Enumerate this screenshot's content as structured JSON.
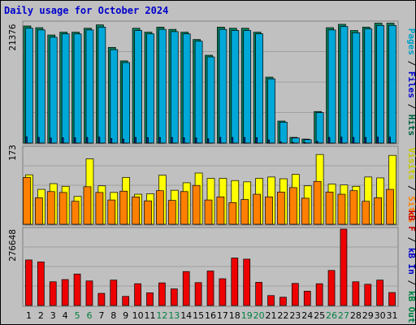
{
  "title": "Daily usage for October 2024",
  "panels": {
    "hits": {
      "max_label": "21376",
      "legend": [
        {
          "text": "Pages",
          "color": "#00a0c8"
        },
        {
          "text": "Files",
          "color": "#0000cc"
        },
        {
          "text": "Hits",
          "color": "#006040"
        }
      ]
    },
    "visits": {
      "max_label": "173",
      "legend": [
        {
          "text": "Visits",
          "color": "#c8c800"
        },
        {
          "text": "Sites",
          "color": "#ff8000"
        }
      ]
    },
    "kbytes": {
      "max_label": "276648",
      "legend": [
        {
          "text": "kB F",
          "color": "#cc0000"
        },
        {
          "text": "kB In",
          "color": "#0000cc"
        },
        {
          "text": "kB Out",
          "color": "#008040"
        }
      ]
    }
  },
  "colors": {
    "hits": "#00805c",
    "files": "#00a8d8",
    "pages": "#0030a0",
    "visits": "#ffff00",
    "sites": "#ff8000",
    "kbf": "#ee0000",
    "weekend_label": "#008040",
    "weekday_label": "#000000"
  },
  "chart_data": {
    "type": "bar",
    "categories": [
      "1",
      "2",
      "3",
      "4",
      "5",
      "6",
      "7",
      "8",
      "9",
      "10",
      "11",
      "12",
      "13",
      "14",
      "15",
      "16",
      "17",
      "18",
      "19",
      "20",
      "21",
      "22",
      "23",
      "24",
      "25",
      "26",
      "27",
      "28",
      "29",
      "30",
      "31"
    ],
    "weekend_days": [
      "5",
      "6",
      "12",
      "13",
      "19",
      "20",
      "26",
      "27"
    ],
    "series": [
      {
        "name": "Hits",
        "panel": "hits",
        "values": [
          20800,
          20500,
          19200,
          19700,
          19700,
          20400,
          21000,
          17000,
          14600,
          20400,
          19700,
          20600,
          20200,
          19700,
          18400,
          15600,
          20600,
          20400,
          20400,
          19700,
          11700,
          3900,
          1000,
          700,
          5600,
          20500,
          21100,
          20000,
          20600,
          21300,
          21300
        ]
      },
      {
        "name": "Files",
        "panel": "hits",
        "values": [
          20400,
          20100,
          18800,
          19400,
          19400,
          20100,
          20600,
          16600,
          14300,
          20000,
          19400,
          20200,
          19800,
          19400,
          18100,
          15300,
          20200,
          20000,
          20000,
          19400,
          11400,
          3700,
          900,
          600,
          5400,
          20100,
          20700,
          19600,
          20300,
          20900,
          20900
        ]
      },
      {
        "name": "Pages",
        "panel": "hits",
        "values": [
          1100,
          1000,
          900,
          950,
          950,
          1000,
          1050,
          800,
          700,
          1000,
          950,
          1000,
          980,
          950,
          900,
          750,
          1000,
          1000,
          1000,
          950,
          550,
          200,
          100,
          80,
          300,
          1000,
          1050,
          1000,
          1000,
          1050,
          1050
        ]
      },
      {
        "name": "Visits",
        "panel": "visits",
        "values": [
          112,
          79,
          92,
          86,
          63,
          148,
          87,
          72,
          106,
          68,
          69,
          111,
          77,
          94,
          116,
          104,
          104,
          99,
          96,
          104,
          107,
          103,
          113,
          87,
          158,
          91,
          89,
          86,
          107,
          105,
          156
        ]
      },
      {
        "name": "Sites",
        "panel": "visits",
        "values": [
          106,
          60,
          74,
          72,
          52,
          85,
          72,
          55,
          75,
          62,
          53,
          76,
          54,
          74,
          88,
          55,
          62,
          49,
          56,
          68,
          62,
          73,
          83,
          59,
          97,
          73,
          68,
          76,
          52,
          60,
          79
        ]
      },
      {
        "name": "kB F",
        "panel": "kbytes",
        "values": [
          165000,
          158000,
          86000,
          94000,
          114000,
          89000,
          44000,
          92000,
          33000,
          79000,
          46000,
          82000,
          60000,
          123000,
          83000,
          125000,
          97000,
          172000,
          168000,
          84000,
          36000,
          30000,
          80000,
          52000,
          79000,
          127000,
          276648,
          86000,
          77000,
          92000,
          47000
        ]
      }
    ],
    "ylim": {
      "hits": [
        0,
        21376
      ],
      "visits": [
        0,
        173
      ],
      "kbytes": [
        0,
        276648
      ]
    }
  }
}
